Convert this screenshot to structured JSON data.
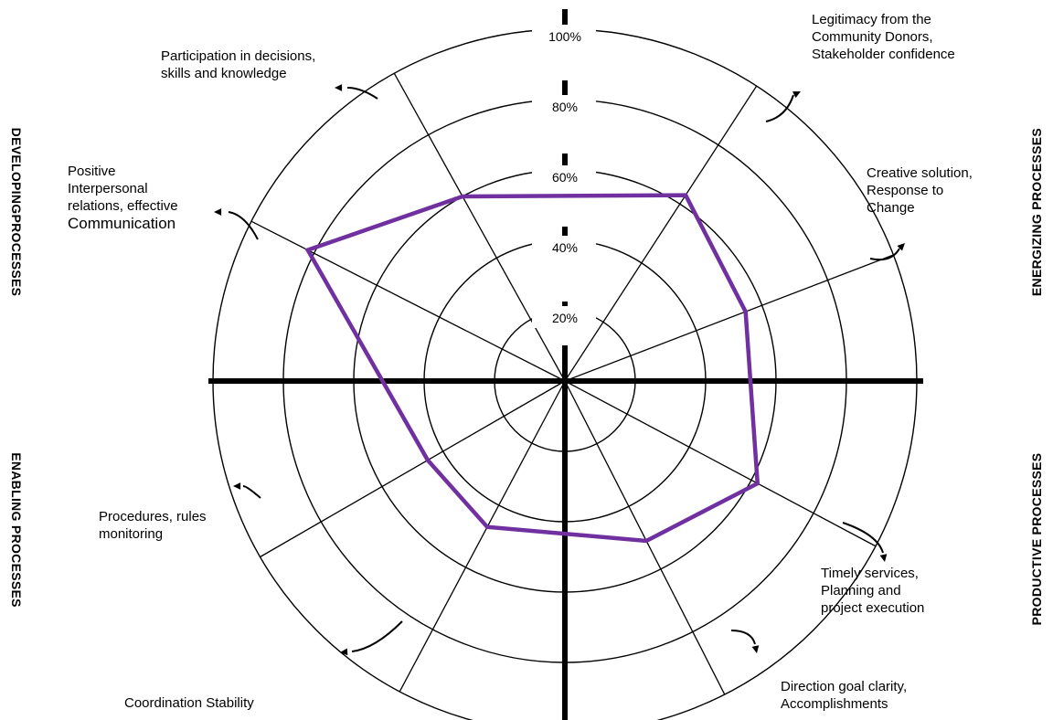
{
  "chart_data": {
    "type": "radar",
    "ring_labels": [
      "20%",
      "40%",
      "60%",
      "80%",
      "100%"
    ],
    "rmax": 100,
    "axes": [
      {
        "label": "Legitimacy from the\nCommunity Donors,\nStakeholder confidence",
        "value": 63
      },
      {
        "label": "Creative solution,\nResponse to\nChange",
        "value": 55
      },
      {
        "label": "Timely services,\nPlanning and\nproject execution",
        "value": 62
      },
      {
        "label": "Direction goal clarity,\nAccomplishments",
        "value": 51
      },
      {
        "label": "Coordination Stability",
        "value": 47
      },
      {
        "label": "Procedures, rules\nmonitoring",
        "value": 45
      },
      {
        "label": "Positive\nInterpersonal\nrelations, effective\nCommunication",
        "value": 82
      },
      {
        "label": "Participation in decisions,\nskills and  knowledge",
        "value": 60
      }
    ],
    "series_color": "#7030a0"
  },
  "quadrant_labels": {
    "top_left": "DEVELOPINGPROCESSES",
    "top_right": "ENERGIZING PROCESSES",
    "bottom_left": "ENABLING PROCESSES",
    "bottom_right": "PRODUCTIVE PROCESSES"
  }
}
